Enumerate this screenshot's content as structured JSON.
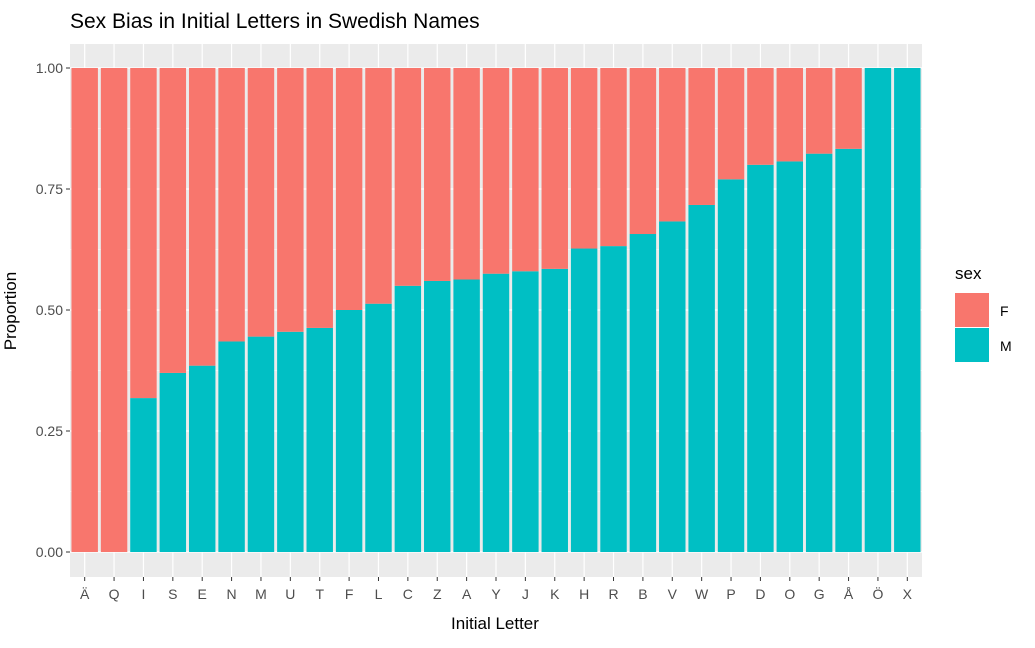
{
  "chart_data": {
    "type": "bar",
    "stacked": true,
    "title": "Sex Bias in Initial Letters in Swedish Names",
    "xlabel": "Initial Letter",
    "ylabel": "Proportion",
    "ylim": [
      0,
      1
    ],
    "yticks": [
      "0.00",
      "0.25",
      "0.50",
      "0.75",
      "1.00"
    ],
    "ytick_values": [
      0,
      0.25,
      0.5,
      0.75,
      1.0
    ],
    "grid": true,
    "legend": {
      "title": "sex",
      "position": "right"
    },
    "categories": [
      "Ä",
      "Q",
      "I",
      "S",
      "E",
      "N",
      "M",
      "U",
      "T",
      "F",
      "L",
      "C",
      "Z",
      "A",
      "Y",
      "J",
      "K",
      "H",
      "R",
      "B",
      "V",
      "W",
      "P",
      "D",
      "O",
      "G",
      "Å",
      "Ö",
      "X"
    ],
    "series": [
      {
        "name": "M",
        "color": "#00BFC4",
        "values": [
          0,
          0,
          0.318,
          0.37,
          0.385,
          0.435,
          0.445,
          0.455,
          0.463,
          0.5,
          0.513,
          0.55,
          0.56,
          0.563,
          0.575,
          0.58,
          0.585,
          0.627,
          0.632,
          0.657,
          0.683,
          0.717,
          0.77,
          0.8,
          0.807,
          0.823,
          0.833,
          1,
          1
        ]
      },
      {
        "name": "F",
        "color": "#F8766D",
        "values": [
          1,
          1,
          0.682,
          0.63,
          0.615,
          0.565,
          0.555,
          0.545,
          0.537,
          0.5,
          0.487,
          0.45,
          0.44,
          0.437,
          0.425,
          0.42,
          0.415,
          0.373,
          0.368,
          0.343,
          0.317,
          0.283,
          0.23,
          0.2,
          0.193,
          0.177,
          0.167,
          0,
          0
        ]
      }
    ]
  }
}
